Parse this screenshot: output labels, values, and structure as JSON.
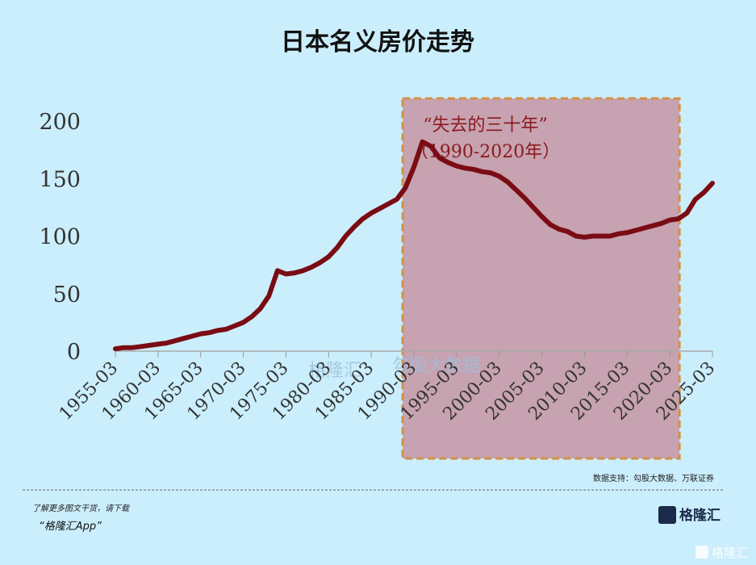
{
  "chart_data": {
    "type": "line",
    "title": "日本名义房价走势",
    "x": [
      "1955-03",
      "1956-03",
      "1957-03",
      "1958-03",
      "1959-03",
      "1960-03",
      "1961-03",
      "1962-03",
      "1963-03",
      "1964-03",
      "1965-03",
      "1966-03",
      "1967-03",
      "1968-03",
      "1969-03",
      "1970-03",
      "1971-03",
      "1972-03",
      "1973-03",
      "1974-03",
      "1975-03",
      "1976-03",
      "1977-03",
      "1978-03",
      "1979-03",
      "1980-03",
      "1981-03",
      "1982-03",
      "1983-03",
      "1984-03",
      "1985-03",
      "1986-03",
      "1987-03",
      "1988-03",
      "1989-03",
      "1990-03",
      "1991-03",
      "1992-03",
      "1993-03",
      "1994-03",
      "1995-03",
      "1996-03",
      "1997-03",
      "1998-03",
      "1999-03",
      "2000-03",
      "2001-03",
      "2002-03",
      "2003-03",
      "2004-03",
      "2005-03",
      "2006-03",
      "2007-03",
      "2008-03",
      "2009-03",
      "2010-03",
      "2011-03",
      "2012-03",
      "2013-03",
      "2014-03",
      "2015-03",
      "2016-03",
      "2017-03",
      "2018-03",
      "2019-03",
      "2020-03",
      "2021-03",
      "2022-03",
      "2023-03",
      "2024-03",
      "2025-03"
    ],
    "values": [
      2,
      3,
      3,
      4,
      5,
      6,
      7,
      9,
      11,
      13,
      15,
      16,
      18,
      19,
      22,
      25,
      30,
      37,
      48,
      70,
      67,
      68,
      70,
      73,
      77,
      82,
      90,
      100,
      108,
      115,
      120,
      124,
      128,
      132,
      142,
      160,
      182,
      178,
      168,
      164,
      161,
      159,
      158,
      156,
      155,
      152,
      147,
      140,
      133,
      125,
      117,
      110,
      106,
      104,
      100,
      99,
      100,
      100,
      100,
      102,
      103,
      105,
      107,
      109,
      111,
      114,
      115,
      120,
      132,
      138,
      146
    ],
    "color": "#7a0c14",
    "ylim": [
      0,
      200
    ],
    "yticks": [
      0,
      50,
      100,
      150,
      200
    ],
    "xticks": [
      "1955-03",
      "1960-03",
      "1965-03",
      "1970-03",
      "1975-03",
      "1980-03",
      "1985-03",
      "1990-03",
      "1995-03",
      "2000-03",
      "2005-03",
      "2010-03",
      "2015-03",
      "2020-03",
      "2025-03"
    ],
    "span": [
      "1990-03",
      "2020-03"
    ],
    "annotation": [
      "“失去的三十年”",
      "（1990-2020年）"
    ],
    "source": "数据支持：勾股大数据、万联证券"
  },
  "watermark": [
    "格隆汇",
    "勾股大数据"
  ],
  "footer": {
    "note": "了解更多图文干货，请下载",
    "app": "“格隆汇App”",
    "logo": "格隆汇",
    "corner": "格隆汇"
  }
}
